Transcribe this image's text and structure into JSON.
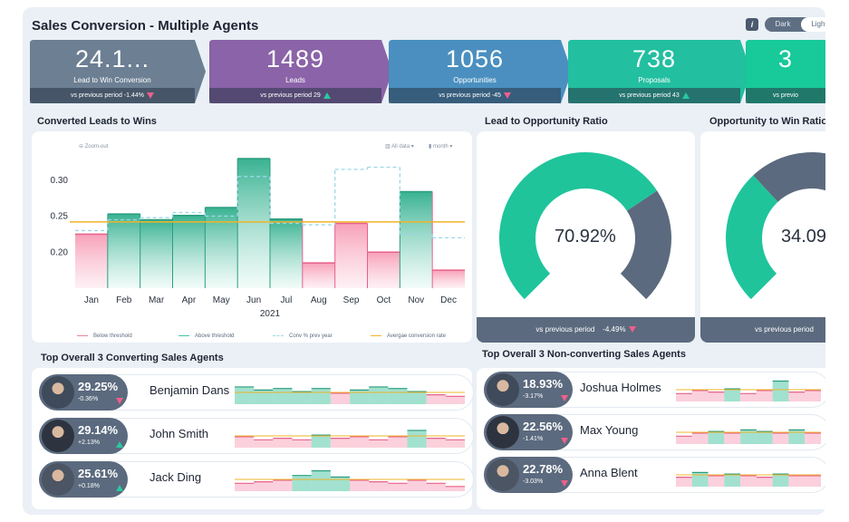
{
  "header": {
    "title": "Sales Conversion - Multiple Agents",
    "info_label": "i",
    "theme_dark": "Dark",
    "theme_light": "Light"
  },
  "kpis": [
    {
      "value": "24.1...",
      "label": "Lead to Win Conversion",
      "footer": "vs previous period   -1.44%",
      "trend": "down",
      "color": "#6c7f93"
    },
    {
      "value": "1489",
      "label": "Leads",
      "footer": "vs previous period   29",
      "trend": "up",
      "color": "#8a63a8"
    },
    {
      "value": "1056",
      "label": "Opportunities",
      "footer": "vs previous period   -45",
      "trend": "down",
      "color": "#4a8fbf"
    },
    {
      "value": "738",
      "label": "Proposals",
      "footer": "vs previous period   43",
      "trend": "up",
      "color": "#22bfa0"
    },
    {
      "value": "3",
      "label": "",
      "footer": "vs previo",
      "trend": "",
      "color": "#18c99a"
    }
  ],
  "main_chart": {
    "section_title": "Converted Leads to Wins",
    "zoom_label": "Zoom-out",
    "data_dropdown": "All data",
    "period_dropdown": "month",
    "legend": [
      {
        "label": "Below threshold",
        "color": "#ef7fa0"
      },
      {
        "label": "Above threshold",
        "color": "#43c6a4"
      },
      {
        "label": "Conv % prev year",
        "color": "#9bd8e8"
      },
      {
        "label": "Avergae conversion rate",
        "color": "#f0b429"
      }
    ]
  },
  "chart_data": {
    "type": "bar",
    "categories": [
      "Jan",
      "Feb",
      "Mar",
      "Apr",
      "May",
      "Jun",
      "Jul",
      "Aug",
      "Sep",
      "Oct",
      "Nov",
      "Dec"
    ],
    "x_caption": "2021",
    "series": [
      {
        "name": "Conversion rate",
        "values": [
          0.225,
          0.253,
          0.245,
          0.251,
          0.262,
          0.33,
          0.246,
          0.185,
          0.24,
          0.2,
          0.284,
          0.175
        ]
      },
      {
        "name": "Conv % prev year",
        "values": [
          0.23,
          0.245,
          0.248,
          0.255,
          0.25,
          0.305,
          0.24,
          0.238,
          0.315,
          0.318,
          0.225,
          0.22
        ]
      }
    ],
    "average": 0.242,
    "yticks": [
      0.2,
      0.25,
      0.3
    ],
    "ylim": [
      0.15,
      0.34
    ],
    "xlabel": "",
    "ylabel": ""
  },
  "donuts": [
    {
      "title": "Lead to Opportunity Ratio",
      "value": "70.92%",
      "fraction": 0.7092,
      "footer": "vs previous period",
      "change": "-4.49%",
      "trend": "down"
    },
    {
      "title": "Opportunity to Win Ratio",
      "value": "34.09",
      "fraction": 0.3409,
      "footer": "vs previous period",
      "change": "",
      "trend": ""
    }
  ],
  "converting": {
    "section_title": "Top Overall 3 Converting Sales Agents",
    "agents": [
      {
        "pct": "29.25%",
        "change": "-0.36%",
        "trend": "down",
        "name": "Benjamin Dans",
        "spark": [
          0.26,
          0.24,
          0.25,
          0.23,
          0.25,
          0.22,
          0.24,
          0.26,
          0.25,
          0.23,
          0.21,
          0.2
        ]
      },
      {
        "pct": "29.14%",
        "change": "+2.13%",
        "trend": "up",
        "name": "John Smith",
        "spark": [
          0.22,
          0.2,
          0.21,
          0.2,
          0.23,
          0.21,
          0.22,
          0.2,
          0.22,
          0.26,
          0.21,
          0.2
        ]
      },
      {
        "pct": "25.61%",
        "change": "+0.18%",
        "trend": "up",
        "name": "Jack Ding",
        "spark": [
          0.2,
          0.21,
          0.22,
          0.25,
          0.28,
          0.24,
          0.22,
          0.21,
          0.2,
          0.22,
          0.2,
          0.18
        ]
      }
    ]
  },
  "nonconverting": {
    "section_title": "Top Overall 3 Non-converting Sales Agents",
    "agents": [
      {
        "pct": "18.93%",
        "change": "-3.17%",
        "trend": "down",
        "name": "Joshua Holmes",
        "spark": [
          0.2,
          0.22,
          0.21,
          0.23,
          0.2,
          0.22,
          0.28,
          0.21,
          0.22
        ]
      },
      {
        "pct": "22.56%",
        "change": "-1.41%",
        "trend": "down",
        "name": "Max Young",
        "spark": [
          0.2,
          0.22,
          0.23,
          0.22,
          0.24,
          0.23,
          0.22,
          0.24,
          0.22
        ]
      },
      {
        "pct": "22.78%",
        "change": "-3.03%",
        "trend": "down",
        "name": "Anna Blent",
        "spark": [
          0.21,
          0.24,
          0.22,
          0.23,
          0.22,
          0.21,
          0.23,
          0.22,
          0.22
        ]
      }
    ]
  }
}
